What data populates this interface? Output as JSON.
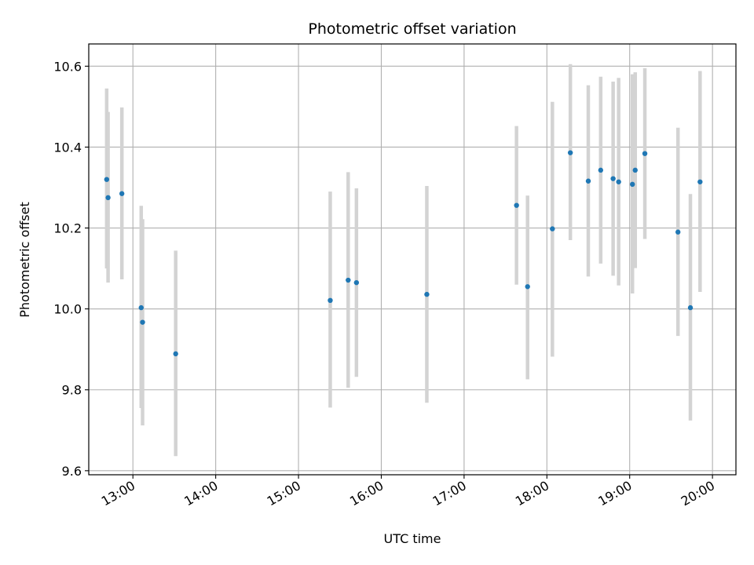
{
  "chart_data": {
    "type": "scatter",
    "title": "Photometric offset variation",
    "xlabel": "UTC time",
    "ylabel": "Photometric offset",
    "x_axis": {
      "kind": "time",
      "range": [
        "12:28",
        "20:17"
      ],
      "ticks": [
        "13:00",
        "14:00",
        "15:00",
        "16:00",
        "17:00",
        "18:00",
        "19:00",
        "20:00"
      ]
    },
    "y_axis": {
      "range": [
        9.59,
        10.655
      ],
      "ticks": [
        9.6,
        9.8,
        10.0,
        10.2,
        10.4,
        10.6
      ],
      "tick_labels": [
        "9.6",
        "9.8",
        "10.0",
        "10.2",
        "10.4",
        "10.6"
      ]
    },
    "grid": true,
    "marker_color": "#1f77b4",
    "errorbar_color": "#d3d3d3",
    "points": [
      {
        "x": "12:41",
        "y": 10.32,
        "ylow": 10.1,
        "yhigh": 10.545
      },
      {
        "x": "12:42",
        "y": 10.275,
        "ylow": 10.065,
        "yhigh": 10.487
      },
      {
        "x": "12:52",
        "y": 10.285,
        "ylow": 10.073,
        "yhigh": 10.498
      },
      {
        "x": "13:06",
        "y": 10.003,
        "ylow": 9.755,
        "yhigh": 10.255
      },
      {
        "x": "13:07",
        "y": 9.967,
        "ylow": 9.712,
        "yhigh": 10.222
      },
      {
        "x": "13:31",
        "y": 9.889,
        "ylow": 9.636,
        "yhigh": 10.144
      },
      {
        "x": "15:23",
        "y": 10.021,
        "ylow": 9.756,
        "yhigh": 10.29
      },
      {
        "x": "15:36",
        "y": 10.071,
        "ylow": 9.805,
        "yhigh": 10.338
      },
      {
        "x": "15:42",
        "y": 10.065,
        "ylow": 9.832,
        "yhigh": 10.298
      },
      {
        "x": "16:33",
        "y": 10.036,
        "ylow": 9.768,
        "yhigh": 10.304
      },
      {
        "x": "17:38",
        "y": 10.256,
        "ylow": 10.06,
        "yhigh": 10.452
      },
      {
        "x": "17:46",
        "y": 10.055,
        "ylow": 9.826,
        "yhigh": 10.28
      },
      {
        "x": "18:04",
        "y": 10.198,
        "ylow": 9.882,
        "yhigh": 10.512
      },
      {
        "x": "18:17",
        "y": 10.386,
        "ylow": 10.17,
        "yhigh": 10.605
      },
      {
        "x": "18:30",
        "y": 10.316,
        "ylow": 10.08,
        "yhigh": 10.553
      },
      {
        "x": "18:39",
        "y": 10.343,
        "ylow": 10.112,
        "yhigh": 10.574
      },
      {
        "x": "18:48",
        "y": 10.322,
        "ylow": 10.082,
        "yhigh": 10.562
      },
      {
        "x": "18:52",
        "y": 10.314,
        "ylow": 10.058,
        "yhigh": 10.571
      },
      {
        "x": "19:02",
        "y": 10.308,
        "ylow": 10.038,
        "yhigh": 10.58
      },
      {
        "x": "19:04",
        "y": 10.343,
        "ylow": 10.101,
        "yhigh": 10.585
      },
      {
        "x": "19:11",
        "y": 10.384,
        "ylow": 10.173,
        "yhigh": 10.595
      },
      {
        "x": "19:35",
        "y": 10.19,
        "ylow": 9.933,
        "yhigh": 10.448
      },
      {
        "x": "19:44",
        "y": 10.003,
        "ylow": 9.724,
        "yhigh": 10.284
      },
      {
        "x": "19:51",
        "y": 10.314,
        "ylow": 10.042,
        "yhigh": 10.588
      }
    ]
  }
}
